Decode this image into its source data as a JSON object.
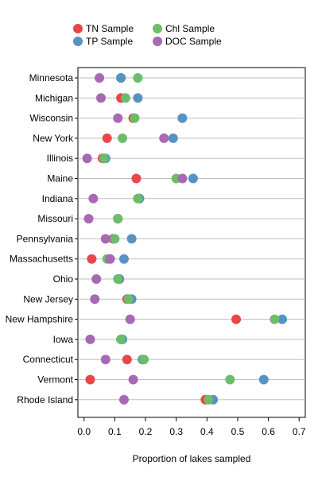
{
  "chart_data": {
    "type": "scatter",
    "title": "",
    "xlabel": "Proportion of lakes sampled",
    "ylabel": "",
    "xlim": [
      -0.02,
      0.72
    ],
    "xticks": [
      0.0,
      0.1,
      0.2,
      0.3,
      0.4,
      0.5,
      0.6,
      0.7
    ],
    "xtick_labels": [
      "0.0",
      "0.1",
      "0.2",
      "0.3",
      "0.4",
      "0.5",
      "0.6",
      "0.7"
    ],
    "grid": "horizontal",
    "legend_position": "top-left",
    "categories": [
      "Minnesota",
      "Michigan",
      "Wisconsin",
      "New York",
      "Illinois",
      "Maine",
      "Indiana",
      "Missouri",
      "Pennsylvania",
      "Massachusetts",
      "Ohio",
      "New Jersey",
      "New Hampshire",
      "Iowa",
      "Connecticut",
      "Vermont",
      "Rhode Island"
    ],
    "series": [
      {
        "name": "TN Sample",
        "color": "#e8474a",
        "values": [
          0.12,
          0.12,
          0.16,
          0.075,
          0.06,
          0.17,
          0.18,
          0.11,
          0.095,
          0.025,
          0.115,
          0.14,
          0.495,
          0.12,
          0.14,
          0.02,
          0.395
        ]
      },
      {
        "name": "TP Sample",
        "color": "#5593c4",
        "values": [
          0.12,
          0.175,
          0.32,
          0.29,
          0.07,
          0.355,
          0.18,
          0.11,
          0.155,
          0.13,
          0.115,
          0.155,
          0.645,
          0.125,
          0.19,
          0.585,
          0.42
        ]
      },
      {
        "name": "Chl Sample",
        "color": "#6bbd6a",
        "values": [
          0.175,
          0.135,
          0.165,
          0.125,
          0.065,
          0.3,
          0.175,
          0.11,
          0.1,
          0.075,
          0.11,
          0.145,
          0.62,
          0.12,
          0.195,
          0.475,
          0.405
        ]
      },
      {
        "name": "DOC Sample",
        "color": "#a768b4",
        "values": [
          0.05,
          0.055,
          0.11,
          0.26,
          0.01,
          0.32,
          0.03,
          0.015,
          0.07,
          0.085,
          0.04,
          0.035,
          0.15,
          0.02,
          0.07,
          0.16,
          0.13
        ]
      }
    ]
  }
}
